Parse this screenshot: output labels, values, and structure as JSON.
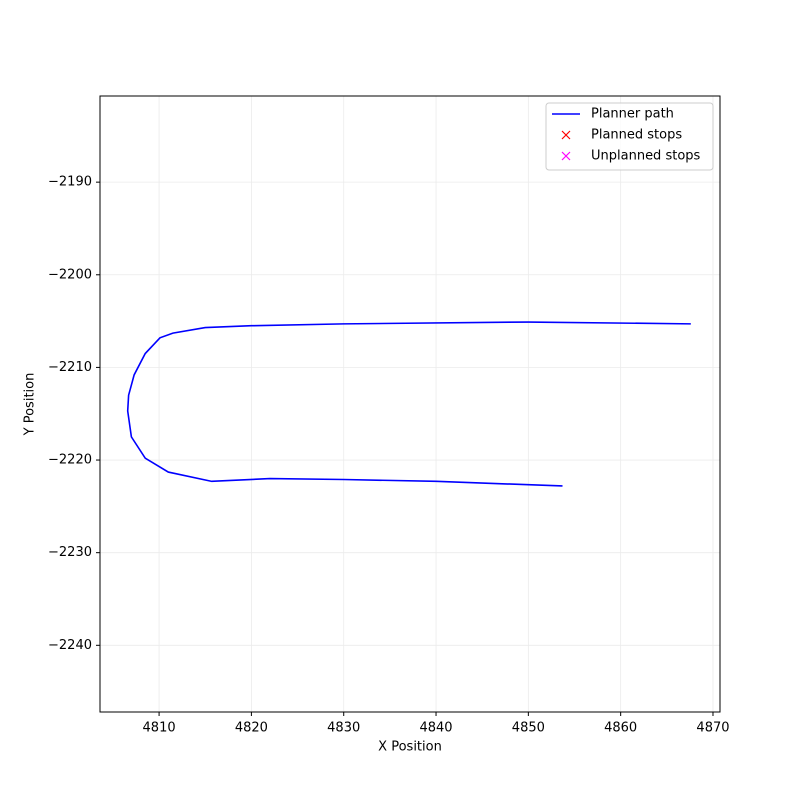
{
  "chart_data": {
    "type": "line",
    "xlabel": "X Position",
    "ylabel": "Y Position",
    "xlim": [
      4803.6,
      4870.76
    ],
    "ylim": [
      -2247.2,
      -2180.7
    ],
    "xticks": [
      4810,
      4820,
      4830,
      4840,
      4850,
      4860,
      4870
    ],
    "yticks": [
      {
        "value": -2190,
        "label": "−2190"
      },
      {
        "value": -2200,
        "label": "−2200"
      },
      {
        "value": -2210,
        "label": "−2210"
      },
      {
        "value": -2220,
        "label": "−2220"
      },
      {
        "value": -2230,
        "label": "−2230"
      },
      {
        "value": -2240,
        "label": "−2240"
      }
    ],
    "grid": true,
    "legend": "upper right",
    "series": [
      {
        "name": "Planner path",
        "color": "#0000ff",
        "marker": "line",
        "x": [
          4867.6,
          4850,
          4830,
          4820,
          4815,
          4811.5,
          4810.1,
          4808.5,
          4807.3,
          4806.7,
          4806.6,
          4807,
          4808.5,
          4811,
          4815.7,
          4822,
          4830,
          4840,
          4853.7
        ],
        "values": [
          -2205.3,
          -2205.1,
          -2205.3,
          -2205.5,
          -2205.7,
          -2206.3,
          -2206.8,
          -2208.5,
          -2210.8,
          -2213,
          -2214.7,
          -2217.5,
          -2219.8,
          -2221.3,
          -2222.3,
          -2222,
          -2222.1,
          -2222.3,
          -2222.8
        ]
      },
      {
        "name": "Planned stops",
        "color": "#ff0000",
        "marker": "x",
        "x": [],
        "values": []
      },
      {
        "name": "Unplanned stops",
        "color": "#ff00ff",
        "marker": "x",
        "x": [],
        "values": []
      }
    ]
  }
}
